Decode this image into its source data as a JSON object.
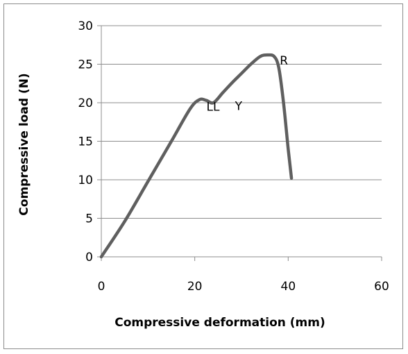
{
  "chart_data": {
    "type": "line",
    "title": "",
    "xlabel": "Compressive deformation (mm)",
    "ylabel": "Compressive load (N)",
    "xlim": [
      0,
      60
    ],
    "ylim": [
      0,
      30
    ],
    "xticks": [
      0,
      20,
      40,
      60
    ],
    "yticks": [
      0,
      5,
      10,
      15,
      20,
      25,
      30
    ],
    "grid": "horizontal",
    "legend": "none",
    "series": [
      {
        "color": "#5f5f5f",
        "x": [
          0,
          5,
          10,
          15,
          19,
          21,
          22.5,
          24,
          26,
          28,
          30,
          32,
          34,
          35.5,
          37,
          38,
          39,
          40,
          40.7
        ],
        "y": [
          0,
          4.6,
          9.8,
          15,
          19.2,
          20.4,
          20.3,
          20.0,
          21.3,
          22.6,
          23.8,
          25.0,
          26.0,
          26.2,
          26.0,
          24.5,
          20,
          14,
          10.2
        ]
      }
    ],
    "annotations": [
      {
        "text": "LL",
        "x": 22.5,
        "y": 19.5
      },
      {
        "text": "Y",
        "x": 28.6,
        "y": 19.6
      },
      {
        "text": "R",
        "x": 38.2,
        "y": 25.5
      }
    ]
  }
}
